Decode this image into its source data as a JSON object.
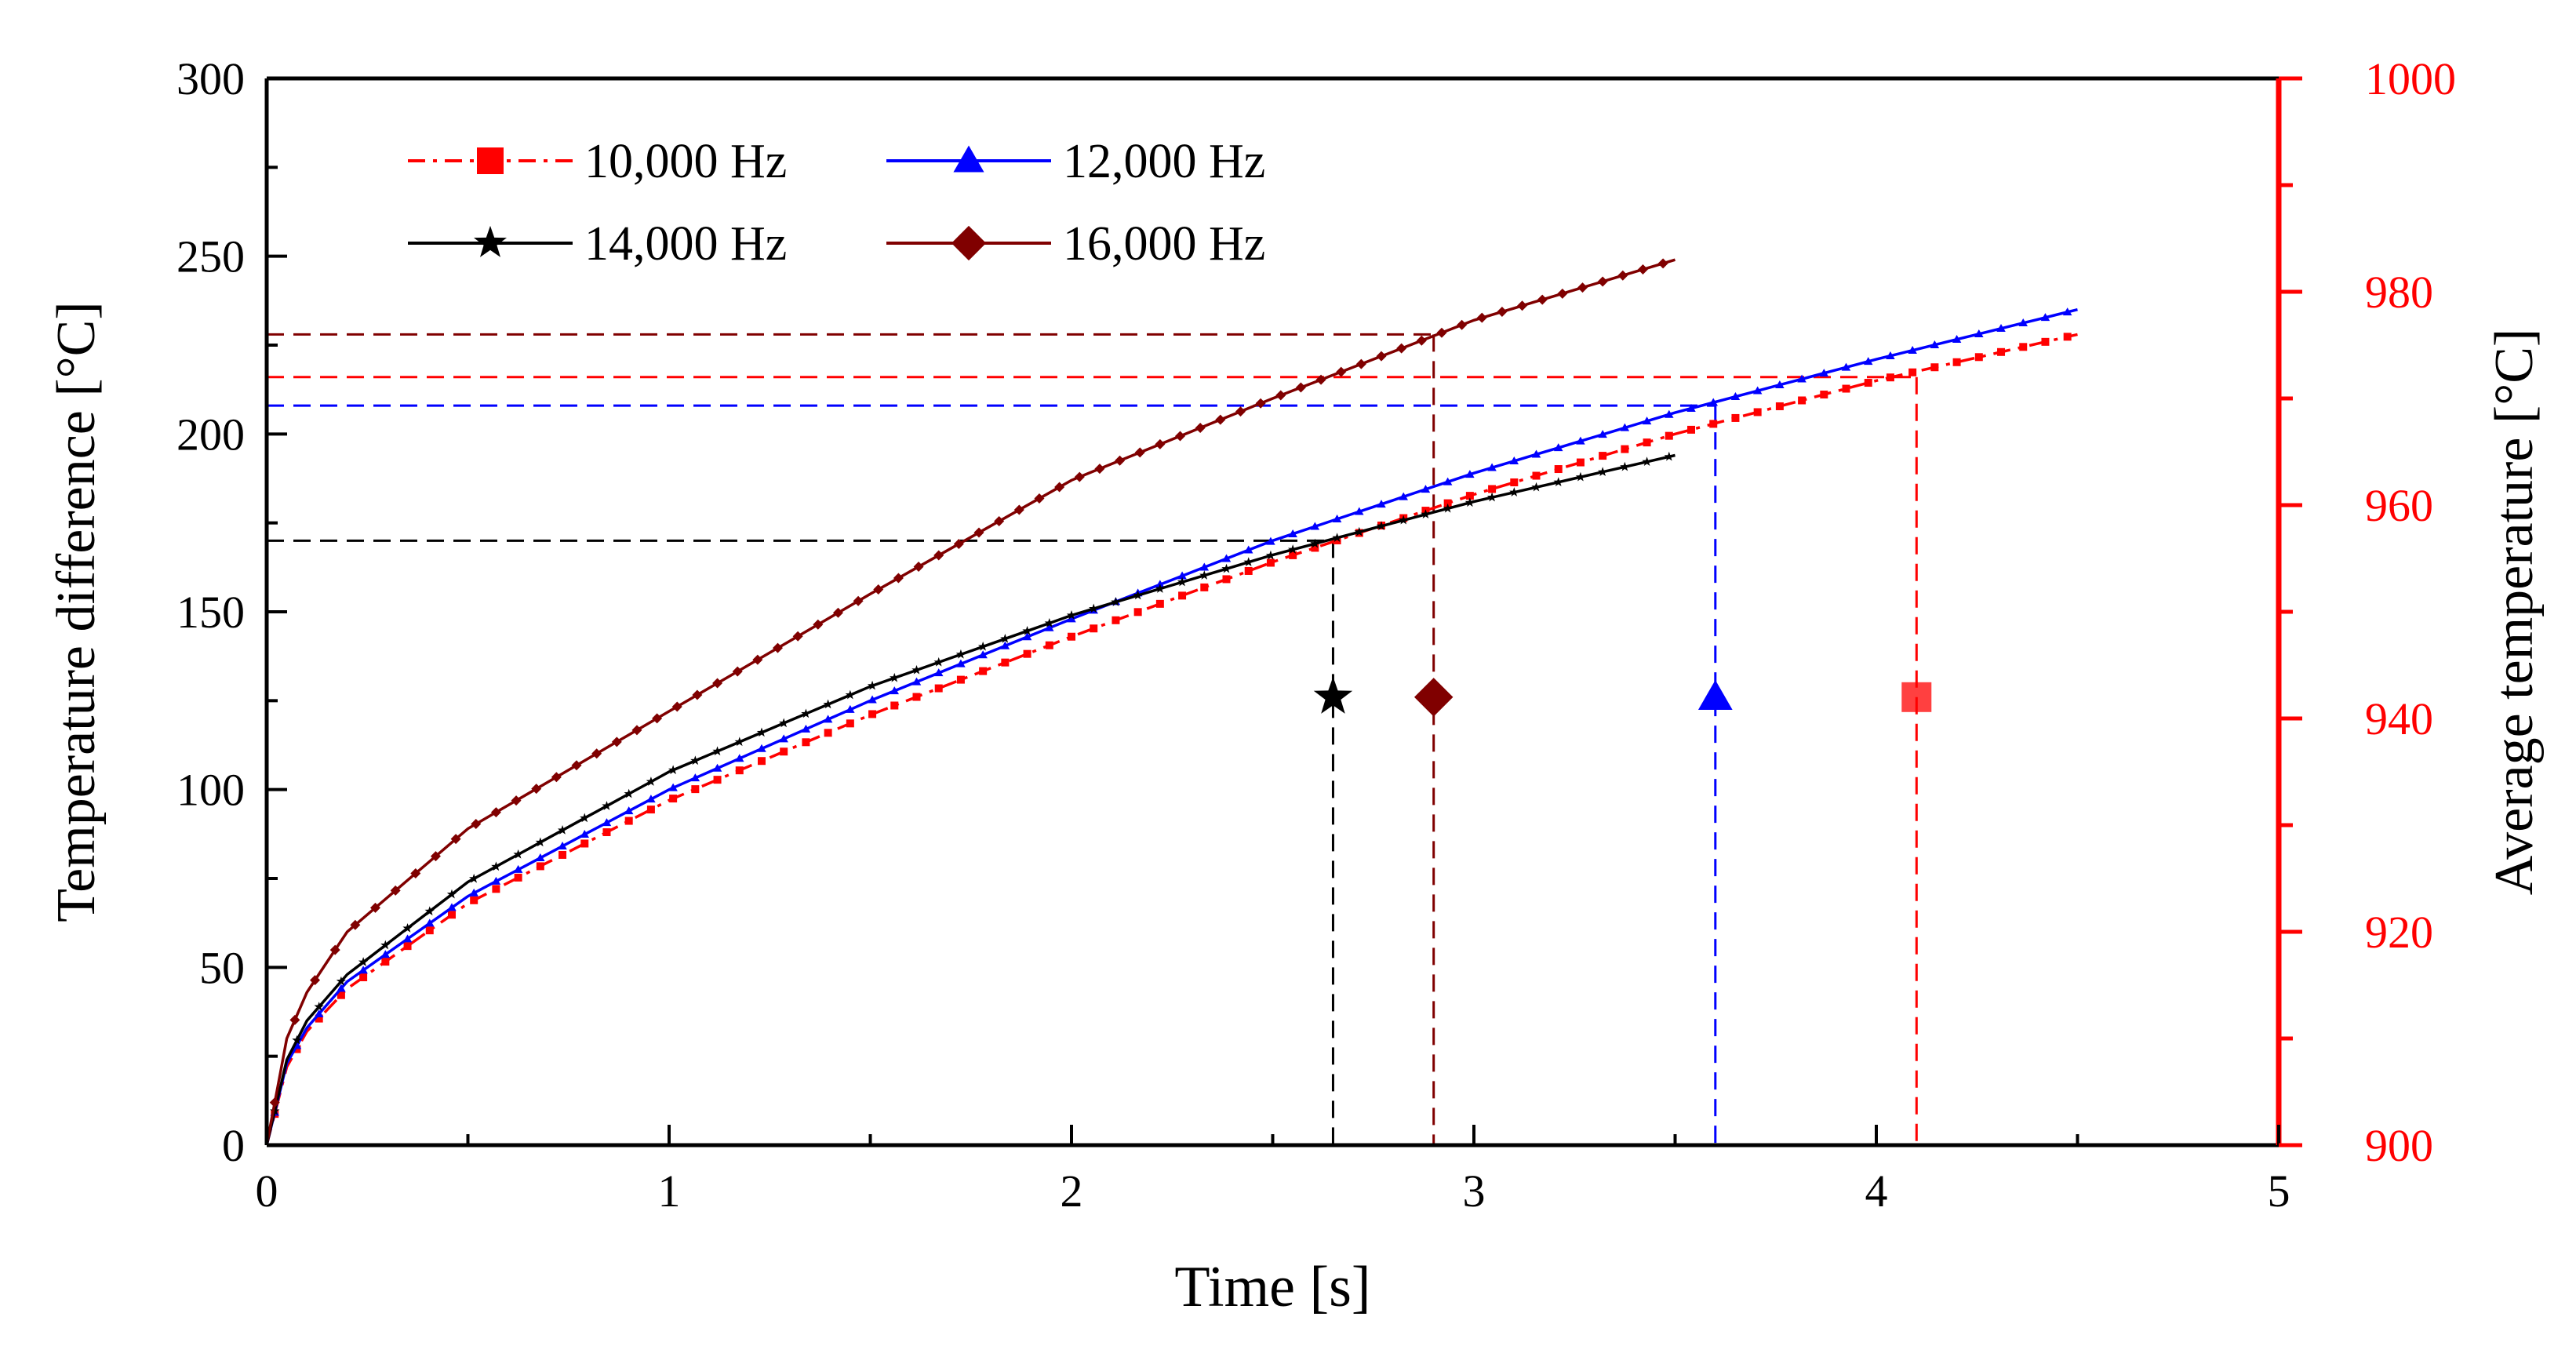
{
  "chart_data": {
    "type": "line",
    "x_axis": {
      "label": "Time [s]",
      "range": [
        0,
        5
      ],
      "ticks": [
        0,
        1,
        2,
        3,
        4,
        5
      ]
    },
    "y_axis_left": {
      "label": "Temperature  difference [°C]",
      "range": [
        0,
        300
      ],
      "ticks": [
        0,
        50,
        100,
        150,
        200,
        250,
        300
      ]
    },
    "y_axis_right": {
      "label": "Average temperature [°C]",
      "range": [
        900,
        1000
      ],
      "ticks": [
        900,
        920,
        940,
        960,
        980,
        1000
      ],
      "color": "#ff0000"
    },
    "legend": [
      {
        "label": "10,000 Hz",
        "color": "#ff0000",
        "marker": "square",
        "dash": "dashdot"
      },
      {
        "label": "12,000 Hz",
        "color": "#0000ff",
        "marker": "triangle",
        "dash": "solid"
      },
      {
        "label": "14,000 Hz",
        "color": "#000000",
        "marker": "star",
        "dash": "solid"
      },
      {
        "label": "16,000 Hz",
        "color": "#800000",
        "marker": "diamond",
        "dash": "solid"
      }
    ],
    "series": [
      {
        "name": "10,000 Hz",
        "color": "#ff0000",
        "marker": "square",
        "x": [
          0,
          0.05,
          0.1,
          0.2,
          0.5,
          1.0,
          1.5,
          2.0,
          2.5,
          3.0,
          3.5,
          4.0,
          4.5
        ],
        "y": [
          0,
          22,
          32,
          44,
          68,
          97,
          121,
          143,
          164,
          183,
          200,
          215,
          228
        ]
      },
      {
        "name": "12,000 Hz",
        "color": "#0000ff",
        "marker": "triangle",
        "x": [
          0,
          0.05,
          0.1,
          0.2,
          0.5,
          1.0,
          1.5,
          2.0,
          2.5,
          3.0,
          3.5,
          4.0,
          4.5
        ],
        "y": [
          0,
          23,
          33,
          46,
          70,
          100,
          125,
          148,
          170,
          189,
          206,
          221,
          235
        ]
      },
      {
        "name": "14,000 Hz",
        "color": "#000000",
        "marker": "star",
        "x": [
          0,
          0.05,
          0.1,
          0.2,
          0.5,
          1.0,
          1.5,
          2.0,
          2.5,
          3.0,
          3.5
        ],
        "y": [
          0,
          24,
          35,
          48,
          74,
          105,
          129,
          149,
          166,
          181,
          194
        ]
      },
      {
        "name": "16,000 Hz",
        "color": "#800000",
        "marker": "diamond",
        "x": [
          0,
          0.05,
          0.1,
          0.2,
          0.5,
          1.0,
          1.5,
          2.0,
          2.5,
          3.0,
          3.5
        ],
        "y": [
          0,
          30,
          43,
          60,
          89,
          122,
          155,
          187,
          210,
          232,
          249
        ]
      }
    ],
    "reference_lines": [
      {
        "series": "10,000 Hz",
        "color": "#ff0000",
        "x": 4.1,
        "y": 216
      },
      {
        "series": "12,000 Hz",
        "color": "#0000ff",
        "x": 3.6,
        "y": 208
      },
      {
        "series": "14,000 Hz",
        "color": "#000000",
        "x": 2.65,
        "y": 170
      },
      {
        "series": "16,000 Hz",
        "color": "#800000",
        "x": 2.9,
        "y": 228
      }
    ],
    "marker_points": [
      {
        "series": "10,000 Hz",
        "x": 4.1,
        "y": 126
      },
      {
        "series": "12,000 Hz",
        "x": 3.6,
        "y": 126
      },
      {
        "series": "14,000 Hz",
        "x": 2.65,
        "y": 126
      },
      {
        "series": "16,000 Hz",
        "x": 2.9,
        "y": 126
      }
    ]
  }
}
